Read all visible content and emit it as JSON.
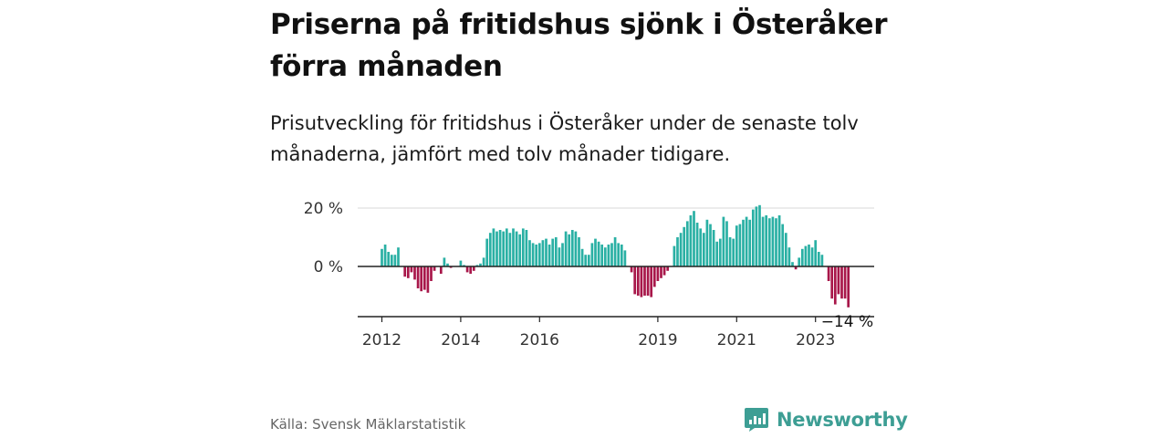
{
  "title": "Priserna på fritidshus sjönk i Österåker förra månaden",
  "subtitle": "Prisutveckling för fritidshus i Österåker under de senaste tolv månaderna, jämfört med tolv månader tidigare.",
  "source": "Källa: Svensk Mäklarstatistik",
  "brand": "Newsworthy",
  "colors": {
    "positive": "#2ab0a4",
    "negative": "#a8174a",
    "brand": "#3d9e94"
  },
  "chart_data": {
    "type": "bar",
    "title": "",
    "xlabel": "",
    "ylabel": "",
    "ylim": [
      -18,
      22
    ],
    "y_ticks": [
      {
        "value": 0,
        "label": "0 %"
      },
      {
        "value": 20,
        "label": "20 %"
      }
    ],
    "x_ticks": [
      {
        "index": 0,
        "label": "2012"
      },
      {
        "index": 24,
        "label": "2014"
      },
      {
        "index": 48,
        "label": "2016"
      },
      {
        "index": 84,
        "label": "2019"
      },
      {
        "index": 108,
        "label": "2021"
      },
      {
        "index": 132,
        "label": "2023"
      }
    ],
    "annotation": {
      "index": 142,
      "label": "−14 %"
    },
    "values": [
      6,
      7.5,
      5,
      4,
      4,
      6.5,
      0,
      -3.5,
      -4,
      -2,
      -4.5,
      -7.5,
      -8.5,
      -8,
      -9,
      -5,
      -1.5,
      0,
      -2.5,
      3,
      1,
      -0.5,
      0,
      0,
      2,
      0.5,
      -2,
      -2.5,
      -1.5,
      0.5,
      1,
      3,
      9.5,
      11.5,
      13,
      12,
      12.5,
      12,
      13,
      11.5,
      13,
      12,
      11,
      13,
      12.5,
      9,
      8,
      7.5,
      8,
      9,
      9.5,
      7.5,
      9.5,
      10,
      6.5,
      8,
      12,
      11,
      12.5,
      12,
      10,
      6,
      4,
      4,
      8,
      9.5,
      8.5,
      7.5,
      6.5,
      7.5,
      8,
      10,
      8,
      7.5,
      5.5,
      0,
      -2,
      -9.5,
      -10,
      -10.5,
      -10,
      -10,
      -10.5,
      -7,
      -5,
      -4,
      -3,
      -1.5,
      0,
      7,
      10,
      11.5,
      13.5,
      15.5,
      17.5,
      19,
      15,
      13,
      11.5,
      16,
      14.5,
      12.5,
      8.5,
      9.5,
      17,
      15.5,
      10,
      9.5,
      14,
      14.5,
      16,
      17,
      16,
      19.5,
      20.5,
      21,
      17,
      17.5,
      16.5,
      17,
      16.5,
      17.5,
      14.5,
      11.5,
      6.5,
      1.5,
      -1,
      3,
      6,
      7,
      7.5,
      6.5,
      9,
      5,
      4,
      0,
      -5,
      -11,
      -13,
      -9.5,
      -11,
      -11,
      -14
    ]
  }
}
